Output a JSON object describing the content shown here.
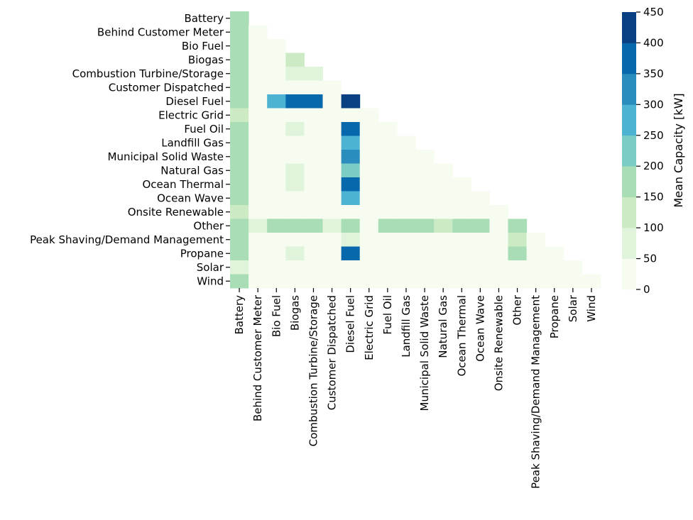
{
  "chart_data": {
    "type": "heatmap",
    "title": "",
    "xlabel": "",
    "ylabel": "",
    "categories": [
      "Battery",
      "Behind Customer Meter",
      "Bio Fuel",
      "Biogas",
      "Combustion Turbine/Storage",
      "Customer Dispatched",
      "Diesel Fuel",
      "Electric Grid",
      "Fuel Oil",
      "Landfill Gas",
      "Municipal Solid Waste",
      "Natural Gas",
      "Ocean Thermal",
      "Ocean Wave",
      "Onsite Renewable",
      "Other",
      "Peak Shaving/Demand Management",
      "Propane",
      "Solar",
      "Wind"
    ],
    "mask": "upper-triangle (j > i hidden)",
    "values": [
      [
        180
      ],
      [
        180,
        15
      ],
      [
        180,
        10,
        10
      ],
      [
        180,
        10,
        10,
        130
      ],
      [
        180,
        10,
        10,
        80,
        80
      ],
      [
        180,
        10,
        10,
        10,
        10,
        10
      ],
      [
        180,
        10,
        270,
        370,
        370,
        10,
        430
      ],
      [
        130,
        10,
        10,
        10,
        10,
        10,
        10,
        10
      ],
      [
        180,
        10,
        10,
        80,
        10,
        10,
        370,
        10,
        10
      ],
      [
        180,
        10,
        10,
        10,
        10,
        10,
        270,
        10,
        10,
        10
      ],
      [
        180,
        10,
        10,
        10,
        10,
        10,
        320,
        10,
        10,
        10,
        10
      ],
      [
        180,
        10,
        10,
        80,
        10,
        10,
        220,
        10,
        10,
        10,
        10,
        10
      ],
      [
        180,
        10,
        10,
        80,
        10,
        10,
        370,
        10,
        10,
        10,
        10,
        10,
        10
      ],
      [
        180,
        10,
        10,
        10,
        10,
        10,
        270,
        10,
        10,
        10,
        10,
        10,
        10,
        10
      ],
      [
        130,
        10,
        10,
        10,
        10,
        10,
        10,
        10,
        10,
        10,
        10,
        10,
        10,
        10,
        10
      ],
      [
        180,
        80,
        180,
        180,
        180,
        80,
        180,
        10,
        180,
        180,
        180,
        130,
        180,
        180,
        10,
        180
      ],
      [
        180,
        10,
        10,
        10,
        10,
        10,
        80,
        10,
        10,
        10,
        10,
        10,
        10,
        10,
        10,
        130,
        10
      ],
      [
        180,
        10,
        10,
        80,
        10,
        10,
        370,
        10,
        10,
        10,
        10,
        10,
        10,
        10,
        10,
        180,
        10,
        10
      ],
      [
        60,
        10,
        10,
        10,
        10,
        10,
        10,
        10,
        10,
        10,
        10,
        10,
        10,
        10,
        10,
        10,
        10,
        10,
        10
      ],
      [
        180,
        10,
        10,
        10,
        10,
        10,
        10,
        10,
        10,
        10,
        10,
        10,
        10,
        10,
        10,
        10,
        10,
        10,
        10,
        10
      ]
    ],
    "colorbar": {
      "label": "Mean Capacity [kW]",
      "min": 0,
      "max": 450,
      "boundaries": [
        0,
        50,
        100,
        150,
        200,
        250,
        300,
        350,
        400,
        450
      ],
      "ticks": [
        "0",
        "50",
        "100",
        "150",
        "200",
        "250",
        "300",
        "350",
        "400",
        "450"
      ],
      "colors": [
        "#f7fcf0",
        "#e0f3db",
        "#ccebc5",
        "#a8ddb5",
        "#7bccc4",
        "#4eb3d3",
        "#2b8cbe",
        "#0868ac",
        "#084081"
      ]
    },
    "grid": false
  }
}
